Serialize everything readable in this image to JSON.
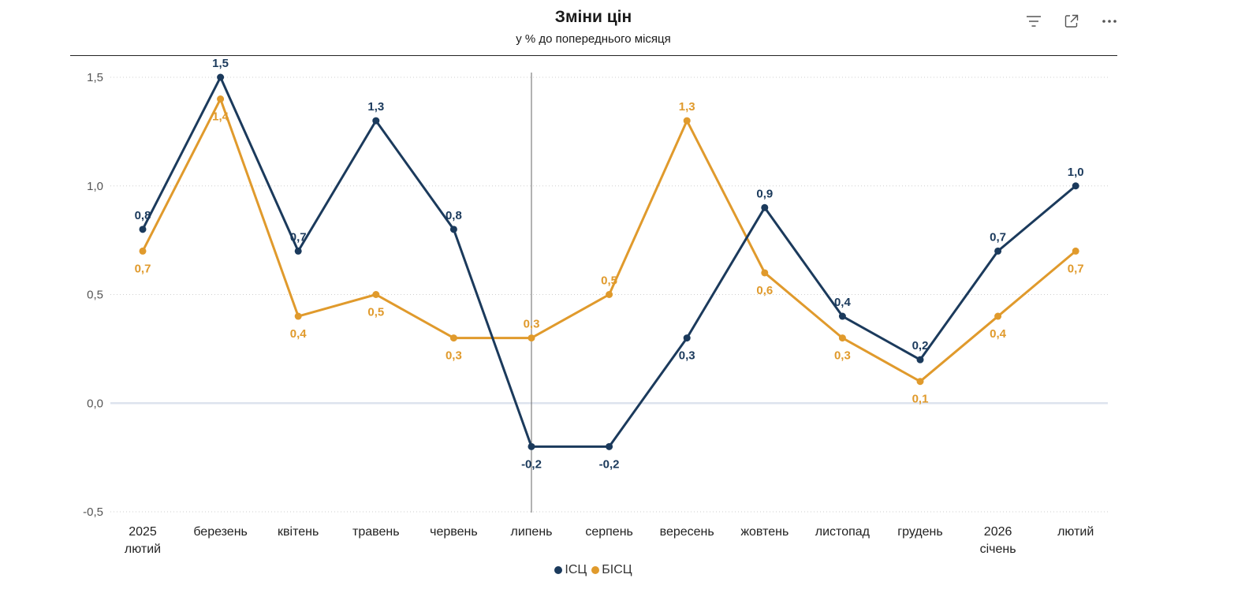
{
  "header": {
    "title": "Зміни цін",
    "subtitle": "у % до попереднього місяця"
  },
  "toolbar": {
    "icons": [
      "filter-icon",
      "expand-icon",
      "more-options-icon"
    ]
  },
  "colors": {
    "series_1": "#1b3a5c",
    "series_2": "#e09a2c",
    "grid": "#cfcfcf",
    "zero_line": "#dde3ee",
    "cursor_line": "#666666"
  },
  "chart_data": {
    "type": "line",
    "title": "Зміни цін",
    "subtitle": "у % до попереднього місяця",
    "categories": [
      [
        "2025",
        "лютий"
      ],
      [
        "березень"
      ],
      [
        "квітень"
      ],
      [
        "травень"
      ],
      [
        "червень"
      ],
      [
        "липень"
      ],
      [
        "серпень"
      ],
      [
        "вересень"
      ],
      [
        "жовтень"
      ],
      [
        "листопад"
      ],
      [
        "грудень"
      ],
      [
        "2026",
        "січень"
      ],
      [
        "лютий"
      ]
    ],
    "series": [
      {
        "name": "ІСЦ",
        "values": [
          0.8,
          1.5,
          0.7,
          1.3,
          0.8,
          -0.2,
          -0.2,
          0.3,
          0.9,
          0.4,
          0.2,
          0.7,
          1.0
        ],
        "labels": [
          "0,8",
          "1,5",
          "0,7",
          "1,3",
          "0,8",
          "-0,2",
          "-0,2",
          "0,3",
          "0,9",
          "0,4",
          "0,2",
          "0,7",
          "1,0"
        ]
      },
      {
        "name": "БІСЦ",
        "values": [
          0.7,
          1.4,
          0.4,
          0.5,
          0.3,
          0.3,
          0.5,
          1.3,
          0.6,
          0.3,
          0.1,
          0.4,
          0.7
        ],
        "labels": [
          "0,7",
          "1,4",
          "0,4",
          "0,5",
          "0,3",
          "0,3",
          "0,5",
          "1,3",
          "0,6",
          "0,3",
          "0,1",
          "0,4",
          "0,7"
        ]
      }
    ],
    "y_ticks": [
      -0.5,
      0.0,
      0.5,
      1.0,
      1.5
    ],
    "y_tick_labels": [
      "-0,5",
      "0,0",
      "0,5",
      "1,0",
      "1,5"
    ],
    "ylim": [
      -0.5,
      1.5
    ],
    "grid": true,
    "legend_position": "bottom-center",
    "hover_category": "липень"
  }
}
